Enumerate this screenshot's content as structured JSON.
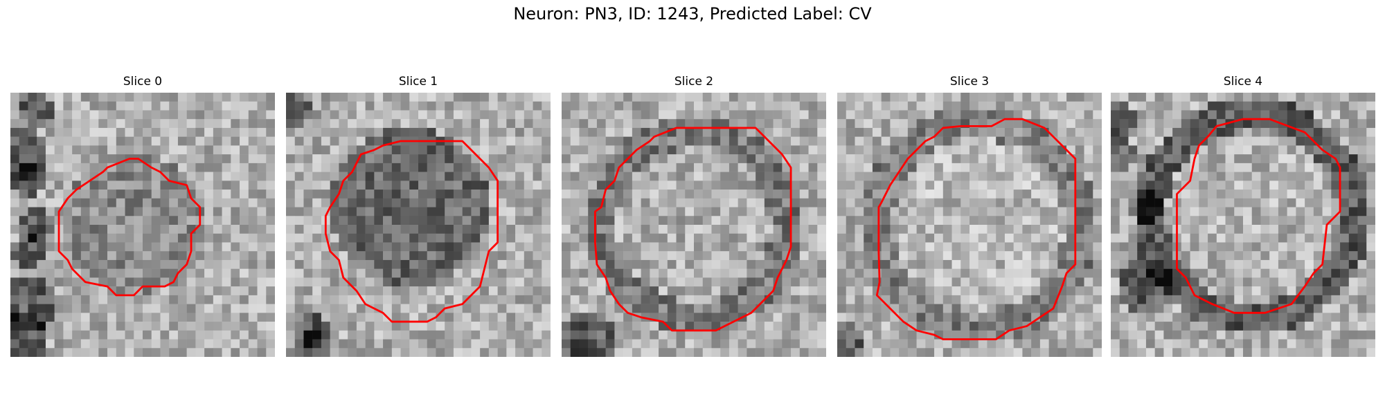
{
  "figure": {
    "title": "Neuron: PN3, ID: 1243, Predicted Label: CV"
  },
  "panels": [
    {
      "title": "Slice 0",
      "image": "grayscale EM image patch with red contour outline"
    },
    {
      "title": "Slice 1",
      "image": "grayscale EM image patch with red contour outline"
    },
    {
      "title": "Slice 2",
      "image": "grayscale EM image patch with red contour outline"
    },
    {
      "title": "Slice 3",
      "image": "grayscale EM image patch with red contour outline"
    },
    {
      "title": "Slice 4",
      "image": "grayscale EM image patch with red contour outline"
    }
  ],
  "colors": {
    "contour": "#ff0000",
    "background": "#ffffff"
  }
}
